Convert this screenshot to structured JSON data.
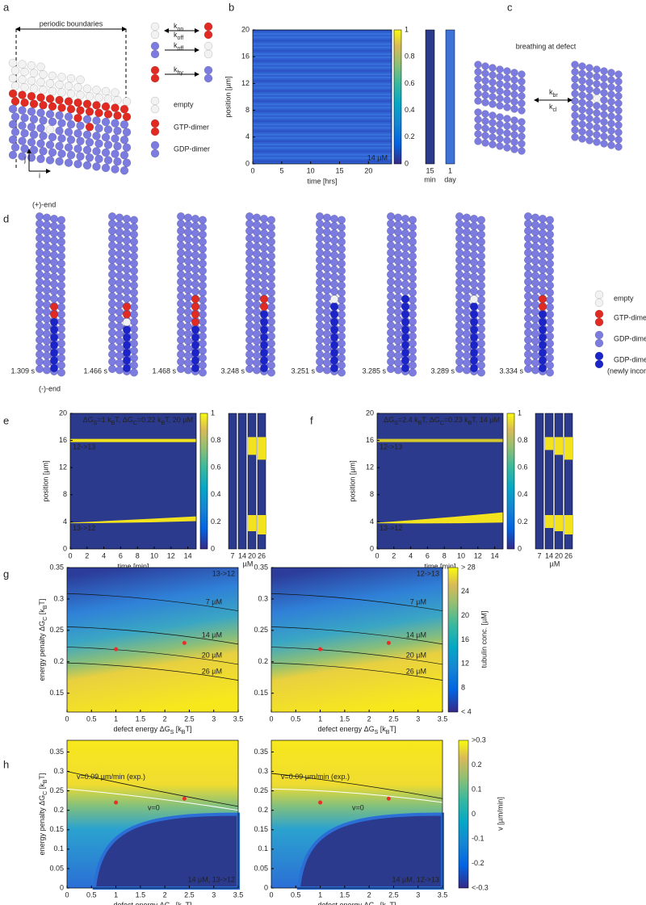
{
  "panels": {
    "a": {
      "label": "a",
      "boundary": "periodic boundaries",
      "rates": [
        [
          "k",
          "on"
        ],
        [
          "k",
          "off"
        ],
        [
          "k",
          "off"
        ],
        [
          "k",
          "hy"
        ]
      ],
      "legend": [
        "empty",
        "GTP-dimer",
        "GDP-dimer"
      ],
      "axes": [
        "j",
        "i"
      ]
    },
    "b": {
      "label": "b",
      "ylabel": "position [µm]",
      "xlabel": "time [hrs]",
      "yticks": [
        "0",
        "4",
        "8",
        "12",
        "16",
        "20"
      ],
      "xticks": [
        "0",
        "5",
        "10",
        "15",
        "20"
      ],
      "note": "14 µM",
      "cbticks": [
        "0",
        "0.2",
        "0.4",
        "0.6",
        "0.8",
        "1"
      ],
      "strips": [
        [
          "15",
          "min"
        ],
        [
          "1",
          "day"
        ]
      ]
    },
    "c": {
      "label": "c",
      "title": "breathing at defect",
      "rates": [
        [
          "k",
          "br"
        ],
        [
          "k",
          "cl"
        ]
      ]
    },
    "d": {
      "label": "d",
      "plus": "(+)-end",
      "minus": "(-)-end",
      "times": [
        "1.309 s",
        "1.466 s",
        "1.468 s",
        "3.248 s",
        "3.251 s",
        "3.285 s",
        "3.289 s",
        "3.334 s"
      ],
      "legend": [
        "empty",
        "GTP-dimer",
        "GDP-dimer",
        "GDP-dimer",
        "(newly incorp.)"
      ]
    },
    "e": {
      "label": "e",
      "title": [
        "ΔG",
        "S",
        "=1 k",
        "B",
        "T, ΔG",
        "C",
        "=0.22 k",
        "B",
        "T, 20 µM"
      ],
      "ylabel": "position [µm]",
      "xlabel": "time [min]",
      "yticks": [
        "0",
        "4",
        "8",
        "12",
        "16",
        "20"
      ],
      "xticks": [
        "0",
        "2",
        "4",
        "6",
        "8",
        "10",
        "12",
        "14"
      ],
      "annotations": [
        "12->13",
        "13->12"
      ],
      "cbticks": [
        "0",
        "0.2",
        "0.4",
        "0.6",
        "0.8",
        "1"
      ],
      "strips": [
        "7",
        "14",
        "20",
        "26"
      ],
      "unit": "µM"
    },
    "f": {
      "label": "f",
      "title": [
        "ΔG",
        "S",
        "=2.4 k",
        "B",
        "T, ΔG",
        "C",
        "=0.23 k",
        "B",
        "T, 14 µM"
      ],
      "ylabel": "position [µm]",
      "xlabel": "time [min]",
      "yticks": [
        "0",
        "4",
        "8",
        "12",
        "16",
        "20"
      ],
      "xticks": [
        "0",
        "2",
        "4",
        "6",
        "8",
        "10",
        "12",
        "14"
      ],
      "annotations": [
        "12->13",
        "13->12"
      ],
      "cbticks": [
        "0",
        "0.2",
        "0.4",
        "0.6",
        "0.8",
        "1"
      ],
      "strips": [
        "7",
        "14",
        "20",
        "26"
      ],
      "unit": "µM"
    },
    "g": {
      "label": "g",
      "ylabel": [
        "energy penalty ΔG",
        "C",
        " [k",
        "B",
        "T]"
      ],
      "xlabel": [
        "defect energy ΔG",
        "S",
        " [k",
        "B",
        "T]"
      ],
      "yticks": [
        "0.15",
        "0.2",
        "0.25",
        "0.3",
        "0.35"
      ],
      "xticks": [
        "0",
        "0.5",
        "1",
        "1.5",
        "2",
        "2.5",
        "3",
        "3.5"
      ],
      "plots": [
        {
          "corner": "13->12",
          "contours": [
            "7 µM",
            "14 µM",
            "20 µM",
            "26 µM"
          ]
        },
        {
          "corner": "12->13",
          "contours": [
            "7 µM",
            "14 µM",
            "20 µM",
            "26 µM"
          ]
        }
      ],
      "cbticks": [
        "< 4",
        "8",
        "12",
        "16",
        "20",
        "24",
        "> 28"
      ],
      "cblabel": "tubulin conc. [µM]"
    },
    "h": {
      "label": "h",
      "ylabel": [
        "energy penalty ΔG",
        "C",
        " [k",
        "B",
        "T]"
      ],
      "xlabel": [
        "defect energy ΔG",
        "S",
        " [k",
        "B",
        "T]"
      ],
      "yticks": [
        "0",
        "0.05",
        "0.1",
        "0.15",
        "0.2",
        "0.25",
        "0.3",
        "0.35"
      ],
      "xticks": [
        "0",
        "0.5",
        "1",
        "1.5",
        "2",
        "2.5",
        "3",
        "3.5"
      ],
      "plots": [
        {
          "lines": [
            "v=0.09 µm/min (exp.)",
            "v=0"
          ],
          "corner": "14 µM, 13->12"
        },
        {
          "lines": [
            "v=0.09 µm/min (exp.)",
            "v=0"
          ],
          "corner": "14 µM, 12->13"
        }
      ],
      "cbticks": [
        "<-0.3",
        "-0.2",
        "-0.1",
        "0",
        "0.1",
        "0.2",
        ">0.3"
      ],
      "cblabel": "v [µm/min]"
    }
  }
}
